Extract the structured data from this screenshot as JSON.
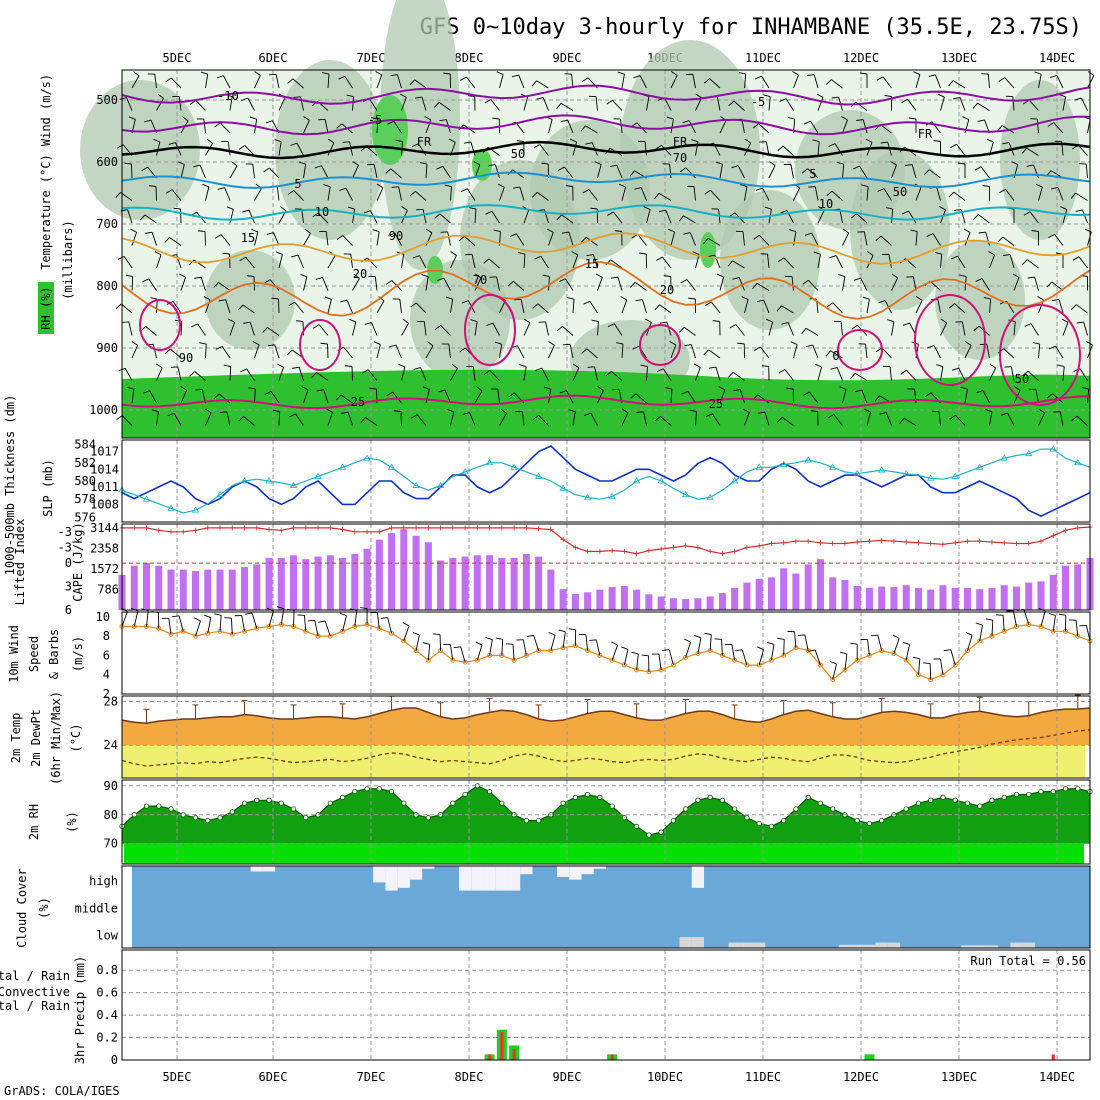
{
  "title": "GFS 0~10day 3-hourly for INHAMBANE (35.5E, 23.75S)",
  "credit": "GrADS: COLA/IGES",
  "days": [
    "5DEC",
    "6DEC",
    "7DEC",
    "8DEC",
    "9DEC",
    "10DEC",
    "11DEC",
    "12DEC",
    "13DEC",
    "14DEC"
  ],
  "colors": {
    "rh_low": "#e8f5e8",
    "rh_mid": "#b0c8b0",
    "rh_high": "#2ec02e",
    "temp_cold": "#8b0fa0",
    "temp_freeze": "#000000",
    "temp_cool": "#1e90d0",
    "temp_mild": "#e0a030",
    "temp_warm": "#e07020",
    "temp_hot": "#d0107a",
    "slp": "#1030c0",
    "thickness": "#20b0c0",
    "lifted": "#d03030",
    "cape": "#c070f0",
    "wind": "#e08a20",
    "temp_fill": "#f4a840",
    "dewpt_fill": "#f0f070",
    "rh_fill": "#10a010",
    "rh_light": "#00e000",
    "cloud": "#6aa8d8",
    "precip_total": "#20d020",
    "precip_conv": "#f03030"
  },
  "panels": {
    "upper": {
      "ylabel_rh": "RH (%)",
      "ylabel_temp": "Temperature (°C)",
      "ylabel_wind": "Wind (m/s)",
      "ylabel_unit": "(millibars)",
      "yticks": [
        500,
        600,
        700,
        800,
        900,
        1000
      ],
      "contour_labels": [
        "-10",
        "-5",
        "FR",
        "5",
        "10",
        "15",
        "20",
        "25",
        "0",
        "50",
        "70",
        "90"
      ]
    },
    "slp": {
      "ylabel_thick": "1000-500mb Thickness (dm)",
      "ylabel_slp": "SLP (mb)",
      "left_ticks": [
        584,
        582,
        580,
        578,
        576
      ],
      "right_ticks": [
        1017,
        1014,
        1011,
        1008
      ]
    },
    "cape": {
      "ylabel_li": "Lifted Index",
      "ylabel_cape": "CAPE (J/kg)",
      "left_ticks": [
        "-3",
        "-3",
        "0",
        "3",
        "6"
      ],
      "right_ticks": [
        "3144",
        "2358",
        "1572",
        "786"
      ]
    },
    "wind10": {
      "ylabel1": "10m Wind",
      "ylabel2": "Speed",
      "ylabel3": "& Barbs",
      "ylabel_unit": "(m/s)",
      "yticks": [
        "10",
        "8",
        "6",
        "4",
        "2"
      ]
    },
    "temp2m": {
      "ylabel1": "2m Temp",
      "ylabel2": "2m DewPt",
      "ylabel3": "(6hr Min/Max)",
      "ylabel_unit": "(°C)",
      "yticks": [
        "28",
        "24"
      ]
    },
    "rh2m": {
      "ylabel": "2m RH",
      "ylabel_unit": "(%)",
      "yticks": [
        "90",
        "80",
        "70"
      ]
    },
    "cloud": {
      "ylabel": "Cloud Cover",
      "ylabel_unit": "(%)",
      "levels": [
        "high",
        "middle",
        "low"
      ]
    },
    "precip": {
      "ylabel1": "Total / Rain",
      "ylabel2": "Convective",
      "ylabel3": "3hr Precip (mm)",
      "yticks": [
        "0.8",
        "0.6",
        "0.4",
        "0.2",
        "0"
      ],
      "run_total": "Run Total = 0.56"
    }
  },
  "chart_data": {
    "type": "line",
    "x_unit": "3-hourly steps, 4DEC 12Z to 14DEC 06Z",
    "steps": 80,
    "slp": {
      "name": "SLP (mb)",
      "ylim": [
        1005,
        1019
      ],
      "values": [
        1010,
        1009,
        1010,
        1011,
        1012,
        1011,
        1009,
        1008,
        1009,
        1011,
        1012,
        1011,
        1009,
        1008,
        1009,
        1011,
        1012,
        1010,
        1008,
        1008,
        1010,
        1012,
        1012,
        1010,
        1009,
        1009,
        1011,
        1013,
        1013,
        1011,
        1010,
        1011,
        1013,
        1015,
        1017,
        1018,
        1016,
        1014,
        1013,
        1012,
        1012,
        1013,
        1014,
        1014,
        1013,
        1012,
        1013,
        1015,
        1016,
        1015,
        1013,
        1012,
        1012,
        1014,
        1015,
        1014,
        1012,
        1011,
        1012,
        1013,
        1013,
        1012,
        1011,
        1012,
        1013,
        1013,
        1011,
        1010,
        1010,
        1011,
        1012,
        1011,
        1010,
        1009,
        1007,
        1006,
        1007,
        1008,
        1009,
        1010
      ]
    },
    "thickness": {
      "name": "1000-500mb Thickness (dm)",
      "ylim": [
        575.5,
        584.5
      ],
      "values": [
        579,
        578.5,
        578,
        577.5,
        577,
        576.5,
        576.8,
        577.5,
        578.5,
        579.5,
        580,
        580.2,
        580,
        579.8,
        579.5,
        580,
        580.5,
        581,
        581.5,
        582,
        582.5,
        582.3,
        581.5,
        580.5,
        579.5,
        579,
        579.5,
        580.5,
        581,
        581.5,
        582,
        582,
        581.5,
        581,
        580.5,
        580,
        579.2,
        578.5,
        578.2,
        578,
        578.3,
        579,
        580,
        580.5,
        580,
        579.2,
        578.5,
        578,
        578.2,
        579,
        580,
        581,
        581.5,
        581.5,
        581.8,
        582,
        582.3,
        582,
        581.5,
        581,
        580.8,
        581,
        581.2,
        581,
        580.8,
        580.6,
        580.3,
        580.2,
        580.5,
        581,
        581.5,
        582,
        582.5,
        582.8,
        583,
        583.5,
        583.5,
        582.5,
        582,
        581.5
      ]
    },
    "lifted_index": {
      "name": "Lifted Index",
      "ylim": [
        6,
        -5
      ],
      "values": [
        -4.5,
        -4.5,
        -4.5,
        -4.2,
        -4,
        -4,
        -4.2,
        -4.5,
        -4.5,
        -4.5,
        -4.5,
        -4.5,
        -4.3,
        -4.2,
        -4.5,
        -4.5,
        -4.5,
        -4.5,
        -4.3,
        -4,
        -4,
        -4,
        -4.5,
        -4.5,
        -4.5,
        -4.5,
        -4.5,
        -4.5,
        -4.5,
        -4.5,
        -4.5,
        -4.5,
        -4.5,
        -4.5,
        -4.4,
        -4.3,
        -3,
        -2,
        -1.5,
        -1.5,
        -1.6,
        -1.5,
        -1.2,
        -1.6,
        -1.8,
        -2,
        -2.2,
        -2,
        -1.5,
        -1.2,
        -1.5,
        -2,
        -2.2,
        -2.5,
        -2.6,
        -2.8,
        -2.8,
        -2.6,
        -2.5,
        -2.5,
        -2.7,
        -2.8,
        -2.9,
        -2.8,
        -2.7,
        -2.6,
        -2.5,
        -2.4,
        -2.6,
        -2.8,
        -2.8,
        -2.7,
        -2.6,
        -2.5,
        -2.5,
        -2.8,
        -3.5,
        -4.2,
        -4.5,
        -4.6
      ]
    },
    "cape": {
      "name": "CAPE (J/kg)",
      "ylim": [
        0,
        3300
      ],
      "values": [
        1350,
        1700,
        1800,
        1700,
        1550,
        1550,
        1500,
        1550,
        1550,
        1550,
        1650,
        1750,
        2000,
        2000,
        2100,
        1950,
        2050,
        2100,
        2000,
        2150,
        2350,
        2700,
        2950,
        3100,
        2850,
        2600,
        1900,
        2000,
        2050,
        2100,
        2100,
        2000,
        2000,
        2150,
        2050,
        1550,
        800,
        620,
        680,
        780,
        880,
        920,
        780,
        600,
        520,
        450,
        420,
        450,
        520,
        650,
        850,
        1050,
        1200,
        1250,
        1600,
        1400,
        1750,
        1950,
        1250,
        1150,
        920,
        850,
        900,
        880,
        950,
        850,
        780,
        950,
        850,
        850,
        800,
        850,
        950,
        900,
        1050,
        1100,
        1350,
        1700,
        1750,
        2000
      ]
    },
    "wind_speed": {
      "name": "10m Wind Speed (m/s)",
      "ylim": [
        2,
        10.5
      ],
      "values": [
        9,
        9,
        9,
        8.8,
        8.2,
        8.5,
        8,
        8.3,
        8.5,
        8.2,
        8.5,
        8.8,
        9,
        9.2,
        9,
        8.5,
        8,
        8,
        8.5,
        9,
        9.2,
        8.8,
        8.3,
        7.5,
        6.5,
        5.5,
        6.5,
        5.5,
        5.3,
        5.5,
        6,
        6,
        5.5,
        6,
        6.5,
        6.5,
        6.8,
        7,
        6.5,
        6,
        5.5,
        5,
        4.5,
        4.3,
        4.5,
        5,
        5.8,
        6.2,
        6.5,
        6,
        5.5,
        5,
        5,
        5.5,
        6,
        6.8,
        6.5,
        5,
        3.5,
        4.5,
        5.5,
        6,
        6.5,
        6.2,
        5.5,
        4,
        3.5,
        4,
        5,
        6.5,
        7.5,
        8,
        8.5,
        9,
        9.2,
        9,
        8.5,
        8.5,
        8,
        7.5
      ]
    },
    "temp": {
      "name": "2m Temp (°C)",
      "ylim": [
        21,
        28.5
      ],
      "values": [
        26.3,
        26.1,
        26,
        26.2,
        26.3,
        26.4,
        26.4,
        26.5,
        26.6,
        26.6,
        26.8,
        26.7,
        26.5,
        26.4,
        26.4,
        26.5,
        26.6,
        26.6,
        26.5,
        26.4,
        26.6,
        26.9,
        27.2,
        27.4,
        27.4,
        27,
        26.6,
        26.4,
        26.5,
        26.8,
        27,
        27.2,
        27.1,
        26.8,
        26.4,
        26.2,
        26.3,
        26.6,
        26.9,
        27.1,
        27.1,
        26.8,
        26.5,
        26.3,
        26.3,
        26.6,
        26.9,
        27.1,
        27.1,
        26.8,
        26.4,
        26.2,
        26.1,
        26.4,
        26.8,
        27.1,
        27.2,
        26.9,
        26.6,
        26.4,
        26.4,
        26.7,
        27,
        27.1,
        27,
        26.8,
        26.5,
        26.5,
        26.8,
        27,
        27.1,
        26.9,
        26.7,
        26.6,
        26.7,
        27,
        27.2,
        27.3,
        27.3,
        27.4
      ]
    },
    "dewpt": {
      "name": "2m DewPt (°C)",
      "ylim": [
        21,
        28.5
      ],
      "values": [
        22.6,
        22.3,
        22.1,
        22.2,
        22.3,
        22.4,
        22.3,
        22.5,
        22.4,
        22.6,
        22.8,
        22.9,
        22.8,
        22.6,
        22.4,
        22.5,
        22.6,
        22.7,
        22.5,
        22.6,
        22.8,
        23.1,
        23.3,
        23.2,
        22.9,
        22.7,
        22.5,
        22.6,
        22.5,
        22.4,
        22.3,
        22.6,
        23,
        23.2,
        23,
        22.7,
        22.5,
        22.6,
        22.8,
        22.7,
        22.5,
        22.4,
        22.6,
        22.7,
        22.6,
        22.7,
        23,
        23.2,
        23.1,
        22.8,
        22.6,
        22.5,
        22.7,
        22.9,
        22.8,
        22.6,
        22.5,
        22.8,
        23.1,
        23.1,
        22.9,
        22.6,
        22.5,
        22.4,
        22.5,
        22.7,
        22.9,
        23.2,
        23.4,
        23.6,
        23.8,
        24.1,
        24.3,
        24.5,
        24.6,
        24.7,
        24.9,
        25.1,
        25.3,
        25.4
      ]
    },
    "rh": {
      "name": "2m RH (%)",
      "ylim": [
        63,
        92
      ],
      "values": [
        76,
        80,
        83,
        83,
        82,
        80,
        79,
        78,
        79,
        81,
        84,
        85,
        85,
        84,
        82,
        79,
        80,
        84,
        86,
        88,
        89,
        89,
        88,
        84,
        80,
        79,
        80,
        84,
        87,
        90,
        88,
        84,
        80,
        78,
        78,
        80,
        84,
        86,
        87,
        86,
        83,
        79,
        76,
        73,
        74,
        78,
        82,
        85,
        86,
        85,
        82,
        79,
        77,
        76,
        78,
        82,
        86,
        84,
        82,
        80,
        78,
        77,
        78,
        80,
        82,
        84,
        85,
        86,
        85,
        84,
        83,
        85,
        86,
        87,
        87,
        88,
        88,
        89,
        89,
        88
      ]
    },
    "cloud_high": {
      "name": "High Cloud (%)",
      "values": [
        0,
        0,
        0,
        0,
        0,
        0,
        0,
        0,
        0,
        0,
        0,
        20,
        20,
        0,
        0,
        0,
        0,
        0,
        0,
        0,
        0,
        60,
        90,
        80,
        50,
        10,
        0,
        0,
        90,
        90,
        90,
        90,
        90,
        30,
        0,
        0,
        40,
        50,
        30,
        10,
        0,
        0,
        0,
        0,
        0,
        0,
        0,
        80,
        0,
        0,
        0,
        0,
        0,
        0,
        0,
        0,
        0,
        0,
        0,
        0,
        0,
        0,
        0,
        0,
        0,
        0,
        0,
        0,
        0,
        0,
        0,
        0,
        0,
        0,
        0,
        0,
        0,
        0,
        0,
        0
      ]
    },
    "cloud_low": {
      "name": "Low Cloud (%)",
      "values": [
        0,
        0,
        0,
        0,
        0,
        0,
        0,
        0,
        0,
        0,
        0,
        0,
        0,
        0,
        0,
        0,
        0,
        0,
        0,
        0,
        0,
        0,
        0,
        0,
        0,
        0,
        0,
        0,
        0,
        0,
        0,
        0,
        0,
        0,
        0,
        0,
        0,
        0,
        0,
        0,
        0,
        0,
        0,
        0,
        0,
        0,
        0,
        0,
        0,
        0,
        0,
        0,
        0,
        0,
        0,
        0,
        0,
        0,
        0,
        0,
        0,
        0,
        0,
        0,
        0,
        0,
        0,
        0,
        0,
        0,
        0,
        0,
        0,
        0,
        0,
        0,
        0,
        0,
        0,
        0
      ]
    },
    "precip_total": {
      "name": "Total / Rain (mm)",
      "values": [
        0,
        0,
        0,
        0,
        0,
        0,
        0,
        0,
        0,
        0,
        0,
        0,
        0,
        0,
        0,
        0,
        0,
        0,
        0,
        0,
        0,
        0,
        0,
        0,
        0,
        0,
        0,
        0,
        0,
        0,
        0.05,
        0.27,
        0.13,
        0,
        0,
        0,
        0,
        0,
        0,
        0,
        0.05,
        0,
        0,
        0,
        0,
        0,
        0,
        0,
        0,
        0,
        0,
        0,
        0,
        0,
        0,
        0,
        0,
        0,
        0,
        0,
        0,
        0.05,
        0,
        0,
        0,
        0,
        0,
        0,
        0,
        0,
        0,
        0,
        0,
        0,
        0,
        0,
        0,
        0,
        0,
        0
      ]
    },
    "precip_conv": {
      "name": "Convective (mm)",
      "values": [
        0,
        0,
        0,
        0,
        0,
        0,
        0,
        0,
        0,
        0,
        0,
        0,
        0,
        0,
        0,
        0,
        0,
        0,
        0,
        0,
        0,
        0,
        0,
        0,
        0,
        0,
        0,
        0,
        0,
        0,
        0.05,
        0.25,
        0.1,
        0,
        0,
        0,
        0,
        0,
        0,
        0,
        0.05,
        0,
        0,
        0,
        0,
        0,
        0,
        0,
        0,
        0,
        0,
        0,
        0,
        0,
        0,
        0,
        0,
        0,
        0,
        0,
        0,
        0,
        0,
        0,
        0,
        0,
        0,
        0,
        0,
        0,
        0,
        0,
        0,
        0,
        0,
        0,
        0.05,
        0,
        0,
        0
      ]
    }
  }
}
